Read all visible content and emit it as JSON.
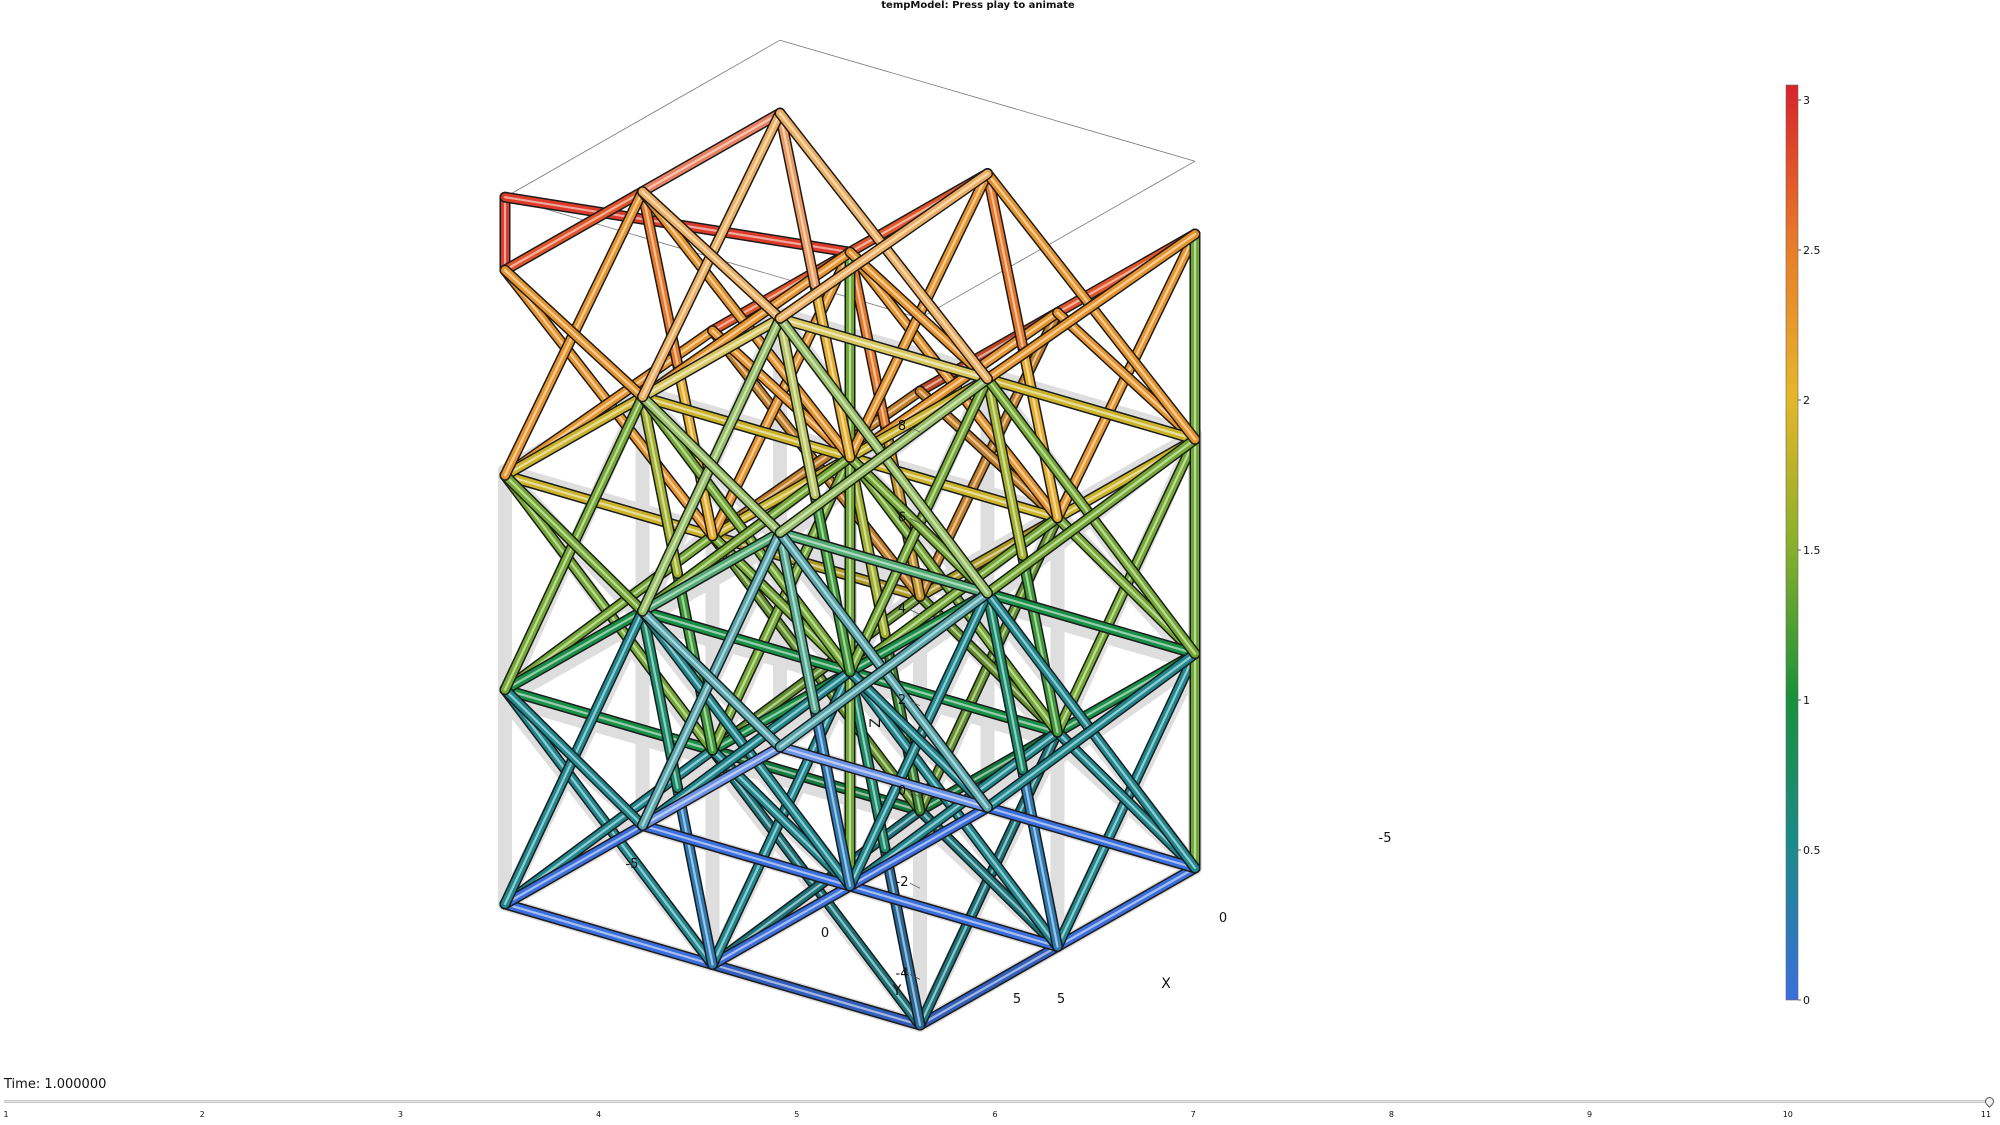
{
  "title": "tempModel: Press play to animate",
  "axes": {
    "z_label": "Z",
    "y_label": "Y",
    "x_label": "X",
    "z_ticks": [
      "8",
      "6",
      "4",
      "2",
      "0",
      "-2",
      "-4"
    ],
    "y_ticks": [
      "-5",
      "0",
      "5"
    ],
    "x_ticks": [
      "5",
      "0",
      "-5"
    ]
  },
  "colorbar": {
    "min": 0,
    "max": 3.05,
    "ticks": [
      "3",
      "2.5",
      "2",
      "1.5",
      "1",
      "0.5",
      "0"
    ],
    "colors": [
      "#3b6fdd",
      "#1a8a8a",
      "#18913a",
      "#8cb02a",
      "#e6b62a",
      "#e87a28",
      "#d8232b"
    ]
  },
  "time": {
    "label": "Time: 1.000000",
    "value": 1.0,
    "slider_fraction": 1.0,
    "ticks": [
      "1",
      "2",
      "3",
      "4",
      "5",
      "6",
      "7",
      "8",
      "9",
      "10",
      "11"
    ]
  }
}
